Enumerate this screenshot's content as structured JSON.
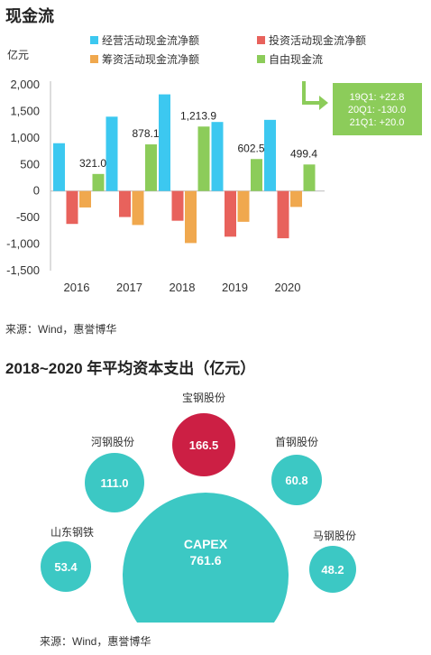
{
  "section1": {
    "title": "现金流",
    "source": "来源：Wind，惠誉博华"
  },
  "section2": {
    "title": "2018~2020 年平均资本支出（亿元）",
    "source": "来源：Wind，惠誉博华"
  },
  "colors": {
    "operating": "#3cc8f0",
    "investing": "#e8625c",
    "financing": "#f0a84e",
    "free": "#8ccc5a",
    "callout_bg": "#8ccc5a",
    "bubble_teal": "#3cc8c4",
    "bubble_red": "#cc1f44"
  },
  "chart_data": [
    {
      "type": "bar",
      "unit_label": "亿元",
      "categories": [
        "2016",
        "2017",
        "2018",
        "2019",
        "2020"
      ],
      "series": [
        {
          "name": "经营活动现金流净额",
          "values": [
            900,
            1400,
            1820,
            1300,
            1340
          ]
        },
        {
          "name": "投资活动现金流净额",
          "values": [
            -620,
            -490,
            -560,
            -860,
            -890
          ]
        },
        {
          "name": "筹资活动现金流净额",
          "values": [
            -310,
            -640,
            -980,
            -580,
            -300
          ]
        },
        {
          "name": "自由现金流",
          "values": [
            321.0,
            878.1,
            1213.9,
            602.5,
            499.4
          ]
        }
      ],
      "data_labels": [
        "321.0",
        "878.1",
        "1,213.9",
        "602.5",
        "499.4"
      ],
      "yticks": [
        "2,000",
        "1,500",
        "1,000",
        "500",
        "0",
        "-500",
        "-1,000",
        "-1,500"
      ],
      "ytick_values": [
        2000,
        1500,
        1000,
        500,
        0,
        -500,
        -1000,
        -1500
      ],
      "ylim": [
        -1500,
        2000
      ],
      "legend_position": "top",
      "callout": [
        "19Q1: +22.8",
        "20Q1: -130.0",
        "21Q1: +20.0"
      ]
    },
    {
      "type": "bubble",
      "bubbles": [
        {
          "label": "CAPEX",
          "value": 761.6,
          "value_text": "761.6",
          "color": "teal"
        },
        {
          "label": "宝钢股份",
          "value": 166.5,
          "value_text": "166.5",
          "color": "red"
        },
        {
          "label": "河钢股份",
          "value": 111.0,
          "value_text": "111.0",
          "color": "teal"
        },
        {
          "label": "首钢股份",
          "value": 60.8,
          "value_text": "60.8",
          "color": "teal"
        },
        {
          "label": "山东钢铁",
          "value": 53.4,
          "value_text": "53.4",
          "color": "teal"
        },
        {
          "label": "马钢股份",
          "value": 48.2,
          "value_text": "48.2",
          "color": "teal"
        }
      ]
    }
  ]
}
